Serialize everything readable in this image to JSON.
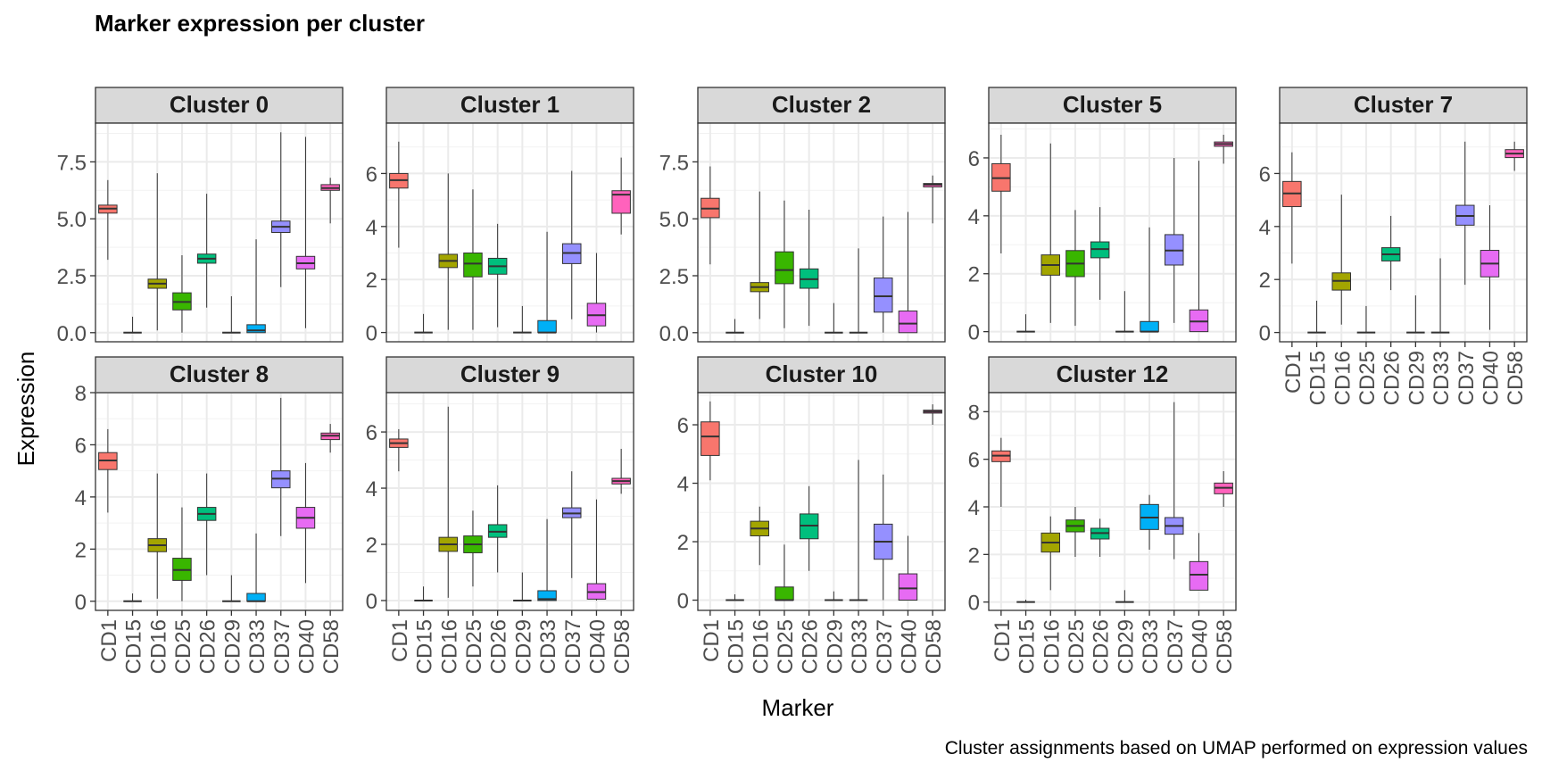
{
  "chart_data": {
    "type": "boxplot",
    "title": "Marker expression per cluster",
    "xlabel": "Marker",
    "ylabel": "Expression",
    "caption": "Cluster assignments based on UMAP performed on expression values",
    "grid": true,
    "legend": "none",
    "categories": [
      "CD1",
      "CD15",
      "CD16",
      "CD25",
      "CD26",
      "CD29",
      "CD33",
      "CD37",
      "CD40",
      "CD58"
    ],
    "colors": [
      "#F8766D",
      "#D89000",
      "#A3A500",
      "#39B600",
      "#00BF7D",
      "#00BFC4",
      "#00B0F6",
      "#9590FF",
      "#E76BF3",
      "#FF62BC"
    ],
    "facets": [
      {
        "label": "Cluster 0",
        "ylim": [
          -0.4,
          9.2
        ],
        "yticks": [
          0,
          2.5,
          5,
          7.5
        ],
        "ytick_labels": [
          "0.0",
          "2.5",
          "5.0",
          "7.5"
        ],
        "boxes": [
          {
            "min": 3.2,
            "q1": 5.25,
            "median": 5.45,
            "q3": 5.6,
            "max": 6.7
          },
          {
            "min": 0,
            "q1": 0,
            "median": 0,
            "q3": 0,
            "max": 0.7
          },
          {
            "min": 0.1,
            "q1": 1.95,
            "median": 2.15,
            "q3": 2.35,
            "max": 7.0
          },
          {
            "min": 0,
            "q1": 1.0,
            "median": 1.35,
            "q3": 1.75,
            "max": 3.4
          },
          {
            "min": 1.1,
            "q1": 3.05,
            "median": 3.25,
            "q3": 3.45,
            "max": 6.1
          },
          {
            "min": 0,
            "q1": 0,
            "median": 0,
            "q3": 0,
            "max": 1.6
          },
          {
            "min": 0,
            "q1": 0,
            "median": 0.1,
            "q3": 0.35,
            "max": 4.1
          },
          {
            "min": 2.0,
            "q1": 4.4,
            "median": 4.65,
            "q3": 4.9,
            "max": 8.8
          },
          {
            "min": 0.2,
            "q1": 2.8,
            "median": 3.05,
            "q3": 3.35,
            "max": 8.6
          },
          {
            "min": 4.8,
            "q1": 6.25,
            "median": 6.35,
            "q3": 6.5,
            "max": 6.8
          }
        ]
      },
      {
        "label": "Cluster 1",
        "ylim": [
          -0.35,
          7.9
        ],
        "yticks": [
          0,
          2,
          4,
          6
        ],
        "ytick_labels": [
          "0",
          "2",
          "4",
          "6"
        ],
        "boxes": [
          {
            "min": 3.2,
            "q1": 5.45,
            "median": 5.75,
            "q3": 6.0,
            "max": 7.2
          },
          {
            "min": 0,
            "q1": 0,
            "median": 0,
            "q3": 0,
            "max": 0.7
          },
          {
            "min": 0.1,
            "q1": 2.45,
            "median": 2.7,
            "q3": 2.95,
            "max": 6.0
          },
          {
            "min": 0.1,
            "q1": 2.1,
            "median": 2.6,
            "q3": 3.0,
            "max": 5.4
          },
          {
            "min": 0.2,
            "q1": 2.2,
            "median": 2.5,
            "q3": 2.8,
            "max": 4.1
          },
          {
            "min": 0,
            "q1": 0,
            "median": 0,
            "q3": 0,
            "max": 1.0
          },
          {
            "min": 0,
            "q1": 0,
            "median": 0,
            "q3": 0.45,
            "max": 3.8
          },
          {
            "min": 0.5,
            "q1": 2.6,
            "median": 3.0,
            "q3": 3.35,
            "max": 6.1
          },
          {
            "min": 0,
            "q1": 0.25,
            "median": 0.65,
            "q3": 1.1,
            "max": 3.0
          },
          {
            "min": 3.7,
            "q1": 4.5,
            "median": 5.2,
            "q3": 5.35,
            "max": 6.6
          }
        ]
      },
      {
        "label": "Cluster 2",
        "ylim": [
          -0.4,
          9.2
        ],
        "yticks": [
          0,
          2.5,
          5,
          7.5
        ],
        "ytick_labels": [
          "0.0",
          "2.5",
          "5.0",
          "7.5"
        ],
        "boxes": [
          {
            "min": 3.0,
            "q1": 5.05,
            "median": 5.45,
            "q3": 5.9,
            "max": 7.3
          },
          {
            "min": 0,
            "q1": 0,
            "median": 0,
            "q3": 0,
            "max": 0.6
          },
          {
            "min": 0.6,
            "q1": 1.8,
            "median": 2.0,
            "q3": 2.2,
            "max": 6.2
          },
          {
            "min": 0.2,
            "q1": 2.15,
            "median": 2.75,
            "q3": 3.55,
            "max": 5.8
          },
          {
            "min": 0.3,
            "q1": 1.95,
            "median": 2.35,
            "q3": 2.8,
            "max": 5.4
          },
          {
            "min": 0,
            "q1": 0,
            "median": 0,
            "q3": 0,
            "max": 1.3
          },
          {
            "min": 0,
            "q1": 0,
            "median": 0,
            "q3": 0,
            "max": 3.7
          },
          {
            "min": 0,
            "q1": 0.9,
            "median": 1.6,
            "q3": 2.4,
            "max": 5.1
          },
          {
            "min": 0,
            "q1": 0,
            "median": 0.4,
            "q3": 0.95,
            "max": 5.3
          },
          {
            "min": 4.8,
            "q1": 6.4,
            "median": 6.5,
            "q3": 6.55,
            "max": 6.9
          }
        ]
      },
      {
        "label": "Cluster 5",
        "ylim": [
          -0.35,
          7.2
        ],
        "yticks": [
          0,
          2,
          4,
          6
        ],
        "ytick_labels": [
          "0",
          "2",
          "4",
          "6"
        ],
        "boxes": [
          {
            "min": 2.7,
            "q1": 4.85,
            "median": 5.3,
            "q3": 5.8,
            "max": 6.8
          },
          {
            "min": 0,
            "q1": 0,
            "median": 0,
            "q3": 0,
            "max": 0.6
          },
          {
            "min": 0.3,
            "q1": 1.95,
            "median": 2.3,
            "q3": 2.65,
            "max": 6.5
          },
          {
            "min": 0.2,
            "q1": 1.9,
            "median": 2.35,
            "q3": 2.8,
            "max": 4.2
          },
          {
            "min": 1.1,
            "q1": 2.55,
            "median": 2.85,
            "q3": 3.1,
            "max": 4.3
          },
          {
            "min": 0,
            "q1": 0,
            "median": 0,
            "q3": 0,
            "max": 1.4
          },
          {
            "min": 0,
            "q1": 0,
            "median": 0,
            "q3": 0.35,
            "max": 3.6
          },
          {
            "min": 0.3,
            "q1": 2.3,
            "median": 2.8,
            "q3": 3.35,
            "max": 6.0
          },
          {
            "min": 0,
            "q1": 0,
            "median": 0.35,
            "q3": 0.75,
            "max": 5.9
          },
          {
            "min": 5.8,
            "q1": 6.4,
            "median": 6.48,
            "q3": 6.55,
            "max": 6.8
          }
        ]
      },
      {
        "label": "Cluster 7",
        "ylim": [
          -0.35,
          7.9
        ],
        "yticks": [
          0,
          2,
          4,
          6
        ],
        "ytick_labels": [
          "0",
          "2",
          "4",
          "6"
        ],
        "boxes": [
          {
            "min": 2.6,
            "q1": 4.75,
            "median": 5.25,
            "q3": 5.7,
            "max": 6.8
          },
          {
            "min": 0,
            "q1": 0,
            "median": 0,
            "q3": 0,
            "max": 1.2
          },
          {
            "min": 0.3,
            "q1": 1.6,
            "median": 1.95,
            "q3": 2.25,
            "max": 5.2
          },
          {
            "min": 0,
            "q1": 0,
            "median": 0,
            "q3": 0,
            "max": 1.0
          },
          {
            "min": 1.6,
            "q1": 2.7,
            "median": 2.95,
            "q3": 3.2,
            "max": 4.4
          },
          {
            "min": 0,
            "q1": 0,
            "median": 0,
            "q3": 0,
            "max": 1.4
          },
          {
            "min": 0,
            "q1": 0,
            "median": 0,
            "q3": 0,
            "max": 2.8
          },
          {
            "min": 1.8,
            "q1": 4.05,
            "median": 4.4,
            "q3": 4.8,
            "max": 7.2
          },
          {
            "min": 0.1,
            "q1": 2.1,
            "median": 2.6,
            "q3": 3.1,
            "max": 4.8
          },
          {
            "min": 6.1,
            "q1": 6.6,
            "median": 6.75,
            "q3": 6.9,
            "max": 7.2
          }
        ]
      },
      {
        "label": "Cluster 8",
        "ylim": [
          -0.35,
          8.0
        ],
        "yticks": [
          0,
          2,
          4,
          6,
          8
        ],
        "ytick_labels": [
          "0",
          "2",
          "4",
          "6",
          "8"
        ],
        "boxes": [
          {
            "min": 3.4,
            "q1": 5.05,
            "median": 5.4,
            "q3": 5.7,
            "max": 6.6
          },
          {
            "min": 0,
            "q1": 0,
            "median": 0,
            "q3": 0,
            "max": 0.3
          },
          {
            "min": 0.1,
            "q1": 1.9,
            "median": 2.15,
            "q3": 2.4,
            "max": 4.9
          },
          {
            "min": 0,
            "q1": 0.8,
            "median": 1.2,
            "q3": 1.65,
            "max": 3.6
          },
          {
            "min": 1.0,
            "q1": 3.1,
            "median": 3.35,
            "q3": 3.6,
            "max": 4.9
          },
          {
            "min": 0,
            "q1": 0,
            "median": 0,
            "q3": 0,
            "max": 1.0
          },
          {
            "min": 0,
            "q1": 0,
            "median": 0,
            "q3": 0.3,
            "max": 2.6
          },
          {
            "min": 2.5,
            "q1": 4.35,
            "median": 4.7,
            "q3": 5.0,
            "max": 7.8
          },
          {
            "min": 0.7,
            "q1": 2.8,
            "median": 3.2,
            "q3": 3.6,
            "max": 5.3
          },
          {
            "min": 5.7,
            "q1": 6.2,
            "median": 6.35,
            "q3": 6.45,
            "max": 6.8
          }
        ]
      },
      {
        "label": "Cluster 9",
        "ylim": [
          -0.35,
          7.4
        ],
        "yticks": [
          0,
          2,
          4,
          6
        ],
        "ytick_labels": [
          "0",
          "2",
          "4",
          "6"
        ],
        "boxes": [
          {
            "min": 4.6,
            "q1": 5.45,
            "median": 5.6,
            "q3": 5.75,
            "max": 6.1
          },
          {
            "min": 0,
            "q1": 0,
            "median": 0,
            "q3": 0,
            "max": 0.5
          },
          {
            "min": 0.1,
            "q1": 1.75,
            "median": 2.0,
            "q3": 2.25,
            "max": 6.9
          },
          {
            "min": 0.5,
            "q1": 1.7,
            "median": 2.0,
            "q3": 2.3,
            "max": 3.2
          },
          {
            "min": 1.0,
            "q1": 2.25,
            "median": 2.45,
            "q3": 2.7,
            "max": 4.1
          },
          {
            "min": 0,
            "q1": 0,
            "median": 0,
            "q3": 0,
            "max": 1.0
          },
          {
            "min": 0,
            "q1": 0,
            "median": 0.05,
            "q3": 0.35,
            "max": 2.9
          },
          {
            "min": 0.8,
            "q1": 2.95,
            "median": 3.1,
            "q3": 3.3,
            "max": 4.6
          },
          {
            "min": 0,
            "q1": 0.05,
            "median": 0.3,
            "q3": 0.6,
            "max": 3.6
          },
          {
            "min": 3.8,
            "q1": 4.15,
            "median": 4.25,
            "q3": 4.35,
            "max": 5.4
          }
        ]
      },
      {
        "label": "Cluster 10",
        "ylim": [
          -0.35,
          7.1
        ],
        "yticks": [
          0,
          2,
          4,
          6
        ],
        "ytick_labels": [
          "0",
          "2",
          "4",
          "6"
        ],
        "boxes": [
          {
            "min": 4.1,
            "q1": 4.95,
            "median": 5.6,
            "q3": 6.1,
            "max": 6.8
          },
          {
            "min": 0,
            "q1": 0,
            "median": 0,
            "q3": 0,
            "max": 0.2
          },
          {
            "min": 1.2,
            "q1": 2.2,
            "median": 2.45,
            "q3": 2.7,
            "max": 3.2
          },
          {
            "min": 0,
            "q1": 0,
            "median": 0,
            "q3": 0.45,
            "max": 1.9
          },
          {
            "min": 1.0,
            "q1": 2.1,
            "median": 2.55,
            "q3": 2.95,
            "max": 3.9
          },
          {
            "min": 0,
            "q1": 0,
            "median": 0,
            "q3": 0,
            "max": 0.3
          },
          {
            "min": 0,
            "q1": 0,
            "median": 0,
            "q3": 0,
            "max": 4.8
          },
          {
            "min": 0,
            "q1": 1.4,
            "median": 2.0,
            "q3": 2.6,
            "max": 4.3
          },
          {
            "min": 0,
            "q1": 0,
            "median": 0.4,
            "q3": 0.9,
            "max": 2.2
          },
          {
            "min": 6.0,
            "q1": 6.4,
            "median": 6.45,
            "q3": 6.5,
            "max": 6.7
          }
        ]
      },
      {
        "label": "Cluster 12",
        "ylim": [
          -0.35,
          8.8
        ],
        "yticks": [
          0,
          2,
          4,
          6,
          8
        ],
        "ytick_labels": [
          "0",
          "2",
          "4",
          "6",
          "8"
        ],
        "boxes": [
          {
            "min": 4.0,
            "q1": 5.9,
            "median": 6.15,
            "q3": 6.35,
            "max": 6.9
          },
          {
            "min": 0,
            "q1": 0,
            "median": 0,
            "q3": 0,
            "max": 0.1
          },
          {
            "min": 0.5,
            "q1": 2.1,
            "median": 2.5,
            "q3": 2.9,
            "max": 3.6
          },
          {
            "min": 1.9,
            "q1": 2.95,
            "median": 3.2,
            "q3": 3.45,
            "max": 4.0
          },
          {
            "min": 1.9,
            "q1": 2.65,
            "median": 2.9,
            "q3": 3.1,
            "max": 3.5
          },
          {
            "min": 0,
            "q1": 0,
            "median": 0,
            "q3": 0,
            "max": 0.5
          },
          {
            "min": 2.2,
            "q1": 3.05,
            "median": 3.55,
            "q3": 4.1,
            "max": 4.5
          },
          {
            "min": 1.8,
            "q1": 2.85,
            "median": 3.2,
            "q3": 3.55,
            "max": 8.4
          },
          {
            "min": 0.5,
            "q1": 0.5,
            "median": 1.15,
            "q3": 1.7,
            "max": 2.9
          },
          {
            "min": 4.0,
            "q1": 4.55,
            "median": 4.8,
            "q3": 5.0,
            "max": 5.5
          }
        ]
      }
    ]
  }
}
